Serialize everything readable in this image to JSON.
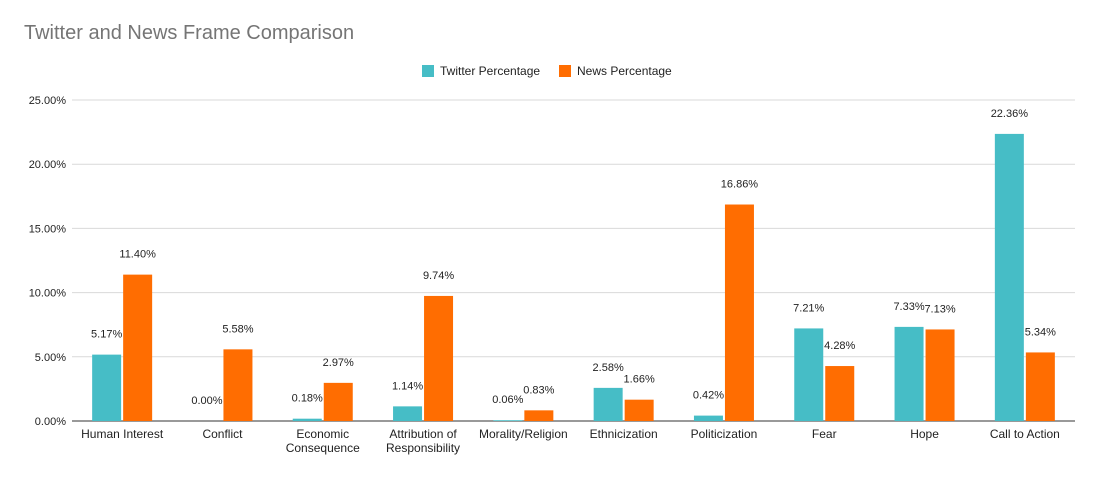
{
  "chart_data": {
    "type": "bar",
    "title": "Twitter and News Frame Comparison",
    "categories": [
      [
        "Human Interest"
      ],
      [
        "Conflict"
      ],
      [
        "Economic",
        "Consequence"
      ],
      [
        "Attribution of",
        "Responsibility"
      ],
      [
        "Morality/Religion"
      ],
      [
        "Ethnicization"
      ],
      [
        "Politicization"
      ],
      [
        "Fear"
      ],
      [
        "Hope"
      ],
      [
        "Call to Action"
      ]
    ],
    "series": [
      {
        "name": "Twitter Percentage",
        "color": "#46bdc6",
        "values": [
          5.17,
          0.0,
          0.18,
          1.14,
          0.06,
          2.58,
          0.42,
          7.21,
          7.33,
          22.36
        ],
        "labels": [
          "5.17%",
          "0.00%",
          "0.18%",
          "1.14%",
          "0.06%",
          "2.58%",
          "0.42%",
          "7.21%",
          "7.33%",
          "22.36%"
        ]
      },
      {
        "name": "News Percentage",
        "color": "#ff6d01",
        "values": [
          11.4,
          5.58,
          2.97,
          9.74,
          0.83,
          1.66,
          16.86,
          4.28,
          7.13,
          5.34
        ],
        "labels": [
          "11.40%",
          "5.58%",
          "2.97%",
          "9.74%",
          "0.83%",
          "1.66%",
          "16.86%",
          "4.28%",
          "7.13%",
          "5.34%"
        ]
      }
    ],
    "ylim": [
      0,
      25
    ],
    "yticks": [
      0,
      5,
      10,
      15,
      20,
      25
    ],
    "ytick_labels": [
      "0.00%",
      "5.00%",
      "10.00%",
      "15.00%",
      "20.00%",
      "25.00%"
    ],
    "xlabel": "",
    "ylabel": "",
    "grid": true,
    "legend_position": "top-center"
  }
}
